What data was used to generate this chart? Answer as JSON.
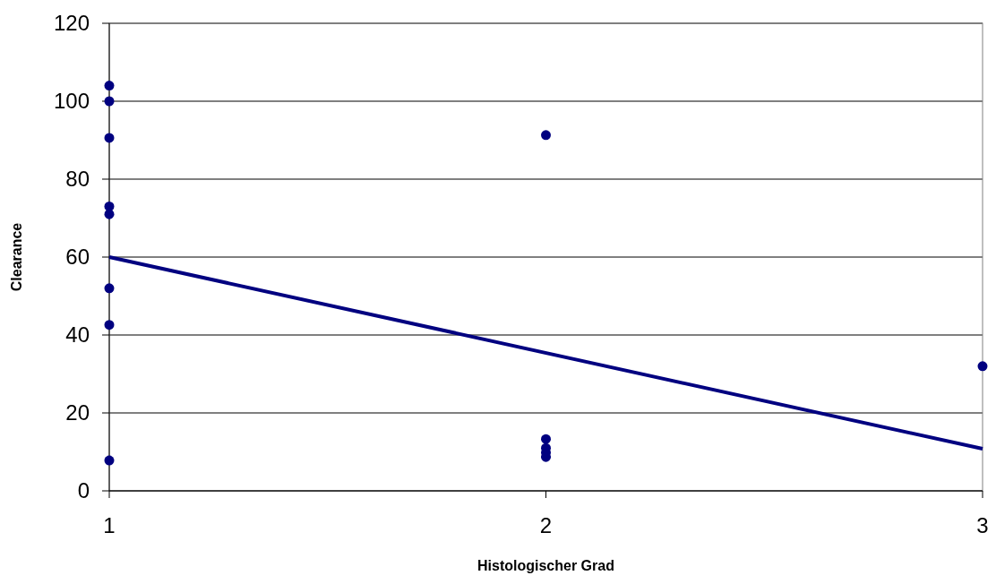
{
  "chart_data": {
    "type": "scatter",
    "xlabel": "Histologischer Grad",
    "ylabel": "Clearance",
    "xlim": [
      1,
      3
    ],
    "xticks": [
      1,
      2,
      3
    ],
    "ylim": [
      0,
      120
    ],
    "yticks": [
      0,
      20,
      40,
      60,
      80,
      100,
      120
    ],
    "grid": "y",
    "marker": "circle",
    "series": [
      {
        "color": "#000080",
        "x": [
          1,
          1,
          1,
          1,
          1,
          1,
          1,
          1,
          2,
          2,
          2,
          2,
          2,
          3
        ],
        "values": [
          104,
          100,
          90.6,
          73,
          71,
          52,
          42.6,
          7.8,
          91.3,
          13.3,
          11,
          9.8,
          8.7,
          32
        ]
      },
      {
        "type": "line",
        "color": "#000080",
        "x": [
          1,
          3
        ],
        "values": [
          60,
          10.8
        ],
        "marker": "none"
      }
    ]
  }
}
